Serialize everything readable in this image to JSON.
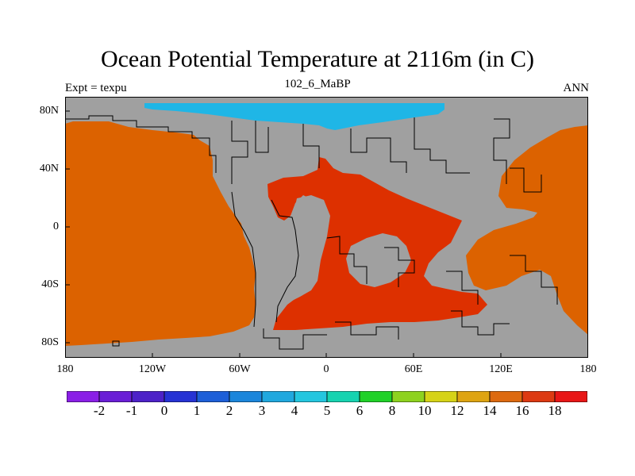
{
  "title": "Ocean Potential Temperature at 2116m (in C)",
  "subtitle": "102_6_MaBP",
  "left_note": "Expt = texpu",
  "right_note": "ANN",
  "y_ticks": [
    "80N",
    "40N",
    "0",
    "40S",
    "80S"
  ],
  "x_ticks": [
    "180",
    "120W",
    "60W",
    "0",
    "60E",
    "120E",
    "180"
  ],
  "colorbar": {
    "labels": [
      "-2",
      "-1",
      "0",
      "1",
      "2",
      "3",
      "4",
      "5",
      "6",
      "8",
      "10",
      "12",
      "14",
      "16",
      "18"
    ],
    "colors": [
      "#8a1fe6",
      "#6a1ed6",
      "#4d22c8",
      "#2633d4",
      "#1d5fd8",
      "#1b86db",
      "#20a8de",
      "#24c6df",
      "#16d3b0",
      "#20d128",
      "#8ed21f",
      "#d6d317",
      "#dea412",
      "#dd6a10",
      "#dd3a12",
      "#e81616"
    ]
  },
  "colors": {
    "land": "#a0a0a0",
    "cold_water": "#1fb6e6",
    "warm_water": "#dc6200",
    "hot_water": "#dd3000"
  },
  "chart_data": {
    "type": "heatmap",
    "title": "Ocean Potential Temperature at 2116m (in C)",
    "subtitle": "102_6_MaBP",
    "x_ticks": [
      "180",
      "120W",
      "60W",
      "0",
      "60E",
      "120E",
      "180"
    ],
    "y_ticks": [
      "80N",
      "40N",
      "0",
      "40S",
      "80S"
    ],
    "colorbar_levels": [
      -2,
      -1,
      0,
      1,
      2,
      3,
      4,
      5,
      6,
      8,
      10,
      12,
      14,
      16,
      18
    ]
  }
}
